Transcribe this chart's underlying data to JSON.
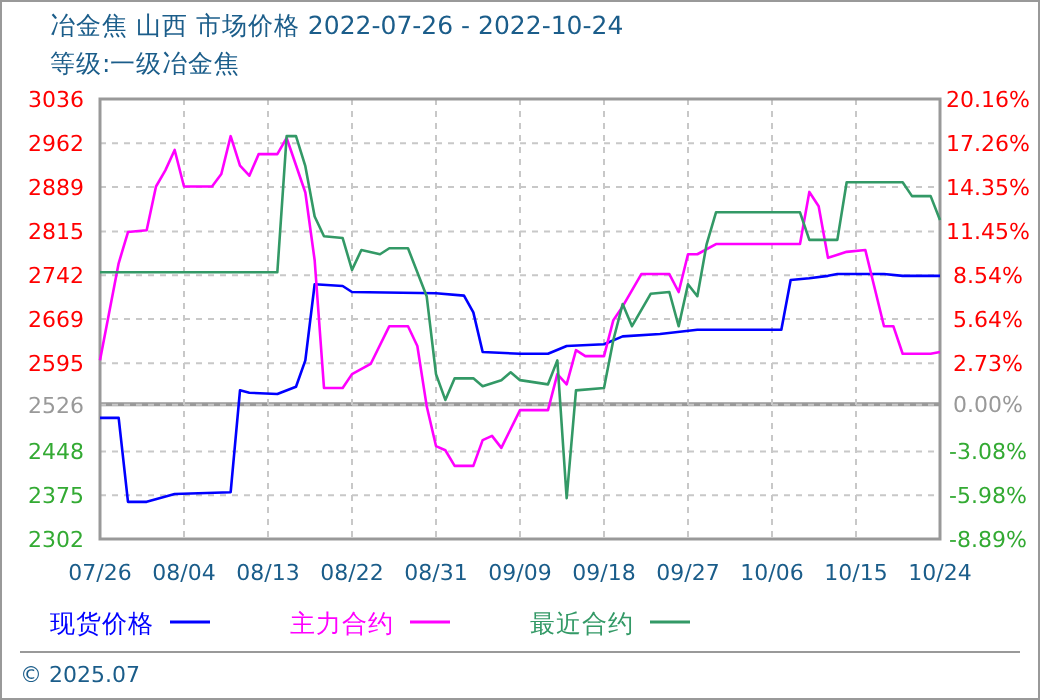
{
  "chart_data": {
    "type": "line",
    "title": "冶金焦 山西 市场价格 2022-07-26 - 2022-10-24",
    "subtitle": "等级:一级冶金焦",
    "annotations": [
      "© 2025.07"
    ],
    "xlim": [
      "2022-07-26",
      "2022-10-24"
    ],
    "xticks": [
      {
        "value": "2022-07-26",
        "label": "07/26"
      },
      {
        "value": "2022-08-04",
        "label": "08/04"
      },
      {
        "value": "2022-08-13",
        "label": "08/13"
      },
      {
        "value": "2022-08-22",
        "label": "08/22"
      },
      {
        "value": "2022-08-31",
        "label": "08/31"
      },
      {
        "value": "2022-09-09",
        "label": "09/09"
      },
      {
        "value": "2022-09-18",
        "label": "09/18"
      },
      {
        "value": "2022-09-27",
        "label": "09/27"
      },
      {
        "value": "2022-10-06",
        "label": "10/06"
      },
      {
        "value": "2022-10-15",
        "label": "10/15"
      },
      {
        "value": "2022-10-24",
        "label": "10/24"
      }
    ],
    "ylim": [
      2302,
      3036
    ],
    "yticks": [
      2302,
      2375,
      2448,
      2526,
      2595,
      2669,
      2742,
      2815,
      2889,
      2962,
      3036
    ],
    "y2lim": [
      -8.89,
      20.16
    ],
    "y2ticks": [
      {
        "value": -8.89,
        "label": "-8.89%"
      },
      {
        "value": -5.98,
        "label": "-5.98%"
      },
      {
        "value": -3.08,
        "label": "-3.08%"
      },
      {
        "value": 0,
        "label": "0.00%"
      },
      {
        "value": 2.73,
        "label": "2.73%"
      },
      {
        "value": 5.64,
        "label": "5.64%"
      },
      {
        "value": 8.54,
        "label": "8.54%"
      },
      {
        "value": 11.45,
        "label": "11.45%"
      },
      {
        "value": 14.35,
        "label": "14.35%"
      },
      {
        "value": 17.26,
        "label": "17.26%"
      },
      {
        "value": 20.16,
        "label": "20.16%"
      }
    ],
    "ref_lines": [
      {
        "axis": "y2",
        "value": 0,
        "color": "#999999"
      }
    ],
    "grid": true,
    "legend": "bottom",
    "marker": "none",
    "line_style": "solid",
    "series": [
      {
        "name": "现货价格",
        "color": "#0000ff",
        "x": [
          "2022-07-26",
          "2022-07-28",
          "2022-07-29",
          "2022-07-31",
          "2022-08-03",
          "2022-08-09",
          "2022-08-10",
          "2022-08-11",
          "2022-08-14",
          "2022-08-16",
          "2022-08-17",
          "2022-08-18",
          "2022-08-21",
          "2022-08-22",
          "2022-08-31",
          "2022-09-03",
          "2022-09-04",
          "2022-09-05",
          "2022-09-09",
          "2022-09-12",
          "2022-09-14",
          "2022-09-18",
          "2022-09-20",
          "2022-09-24",
          "2022-09-28",
          "2022-10-07",
          "2022-10-08",
          "2022-10-10",
          "2022-10-12",
          "2022-10-13",
          "2022-10-18",
          "2022-10-20",
          "2022-10-24"
        ],
        "values": [
          2504,
          2504,
          2364,
          2364,
          2377,
          2380,
          2550,
          2546,
          2544,
          2556,
          2600,
          2727,
          2724,
          2714,
          2712,
          2708,
          2680,
          2614,
          2611,
          2611,
          2624,
          2627,
          2640,
          2644,
          2651,
          2651,
          2734,
          2737,
          2741,
          2744,
          2744,
          2741,
          2741
        ]
      },
      {
        "name": "主力合约",
        "color": "#ff00ff",
        "x": [
          "2022-07-26",
          "2022-07-28",
          "2022-07-29",
          "2022-07-31",
          "2022-08-01",
          "2022-08-02",
          "2022-08-03",
          "2022-08-04",
          "2022-08-07",
          "2022-08-08",
          "2022-08-09",
          "2022-08-10",
          "2022-08-11",
          "2022-08-12",
          "2022-08-14",
          "2022-08-15",
          "2022-08-17",
          "2022-08-18",
          "2022-08-19",
          "2022-08-21",
          "2022-08-22",
          "2022-08-24",
          "2022-08-26",
          "2022-08-28",
          "2022-08-29",
          "2022-08-30",
          "2022-08-31",
          "2022-09-01",
          "2022-09-02",
          "2022-09-04",
          "2022-09-05",
          "2022-09-06",
          "2022-09-07",
          "2022-09-09",
          "2022-09-12",
          "2022-09-13",
          "2022-09-14",
          "2022-09-15",
          "2022-09-16",
          "2022-09-18",
          "2022-09-19",
          "2022-09-20",
          "2022-09-22",
          "2022-09-25",
          "2022-09-26",
          "2022-09-27",
          "2022-09-28",
          "2022-09-30",
          "2022-10-09",
          "2022-10-10",
          "2022-10-11",
          "2022-10-12",
          "2022-10-14",
          "2022-10-16",
          "2022-10-18",
          "2022-10-19",
          "2022-10-20",
          "2022-10-23",
          "2022-10-24"
        ],
        "values": [
          2600,
          2762,
          2814,
          2817,
          2890,
          2917,
          2951,
          2890,
          2890,
          2911,
          2974,
          2925,
          2908,
          2944,
          2944,
          2971,
          2880,
          2767,
          2554,
          2554,
          2577,
          2594,
          2657,
          2657,
          2624,
          2524,
          2457,
          2450,
          2424,
          2424,
          2467,
          2474,
          2454,
          2517,
          2517,
          2577,
          2560,
          2617,
          2607,
          2607,
          2667,
          2690,
          2744,
          2744,
          2714,
          2777,
          2777,
          2794,
          2794,
          2881,
          2857,
          2771,
          2781,
          2784,
          2657,
          2657,
          2611,
          2611,
          2614
        ]
      },
      {
        "name": "最近合约",
        "color": "#339966",
        "x": [
          "2022-07-26",
          "2022-08-14",
          "2022-08-15",
          "2022-08-16",
          "2022-08-17",
          "2022-08-18",
          "2022-08-19",
          "2022-08-21",
          "2022-08-22",
          "2022-08-23",
          "2022-08-25",
          "2022-08-26",
          "2022-08-28",
          "2022-08-30",
          "2022-08-31",
          "2022-09-01",
          "2022-09-02",
          "2022-09-04",
          "2022-09-05",
          "2022-09-07",
          "2022-09-08",
          "2022-09-09",
          "2022-09-12",
          "2022-09-13",
          "2022-09-14",
          "2022-09-15",
          "2022-09-18",
          "2022-09-19",
          "2022-09-20",
          "2022-09-21",
          "2022-09-23",
          "2022-09-25",
          "2022-09-26",
          "2022-09-27",
          "2022-09-28",
          "2022-09-29",
          "2022-09-30",
          "2022-10-09",
          "2022-10-10",
          "2022-10-13",
          "2022-10-14",
          "2022-10-20",
          "2022-10-21",
          "2022-10-23",
          "2022-10-24"
        ],
        "values": [
          2747,
          2747,
          2974,
          2974,
          2924,
          2840,
          2807,
          2804,
          2751,
          2784,
          2777,
          2787,
          2787,
          2707,
          2577,
          2534,
          2570,
          2570,
          2557,
          2567,
          2580,
          2567,
          2560,
          2600,
          2370,
          2550,
          2554,
          2634,
          2694,
          2657,
          2711,
          2714,
          2657,
          2727,
          2707,
          2794,
          2847,
          2847,
          2801,
          2801,
          2897,
          2897,
          2874,
          2874,
          2834
        ]
      }
    ]
  }
}
